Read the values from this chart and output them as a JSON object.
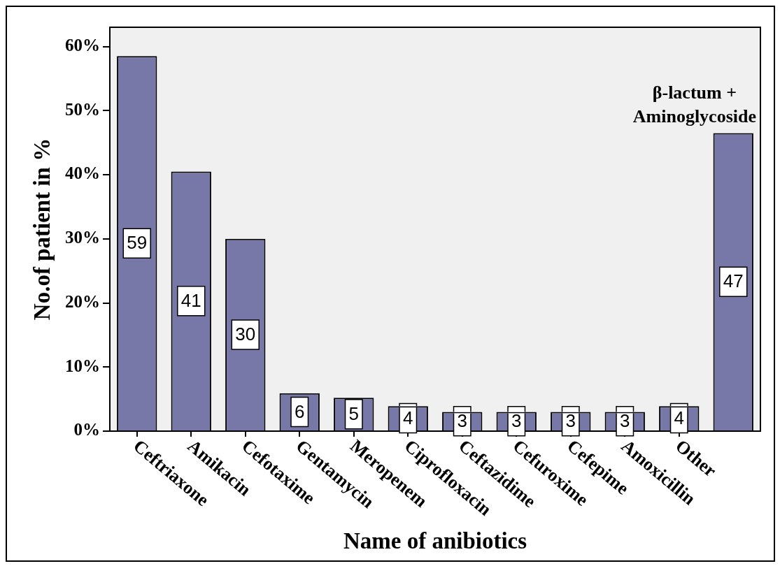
{
  "chart_data": {
    "type": "bar",
    "xlabel": "Name of anibiotics",
    "ylabel": "No.of patient in %",
    "categories": [
      "Ceftriaxone",
      "Amikacin",
      "Cefotaxime",
      "Gentamycin",
      "Meropenem",
      "Ciprofloxacin",
      "Ceftazidime",
      "Cefuroxime",
      "Cefepime",
      "Amoxicillin",
      "Other",
      null
    ],
    "values": [
      58.5,
      40.5,
      30,
      5.9,
      5.2,
      3.9,
      3,
      3,
      3,
      3,
      3.9,
      46.5
    ],
    "value_labels": [
      "59",
      "41",
      "30",
      "6",
      "5",
      "4",
      "3",
      "3",
      "3",
      "3",
      "4",
      "47"
    ],
    "color": "#7878a8",
    "ylim": [
      0,
      63
    ],
    "yticks": [
      {
        "value": 0,
        "label": "0%"
      },
      {
        "value": 10,
        "label": "10%"
      },
      {
        "value": 20,
        "label": "20%"
      },
      {
        "value": 30,
        "label": "30%"
      },
      {
        "value": 40,
        "label": "40%"
      },
      {
        "value": 50,
        "label": "50%"
      },
      {
        "value": 60,
        "label": "60%"
      }
    ],
    "grid": false,
    "legend": false,
    "annotations": [
      "β-lactum + Aminoglycoside"
    ]
  }
}
